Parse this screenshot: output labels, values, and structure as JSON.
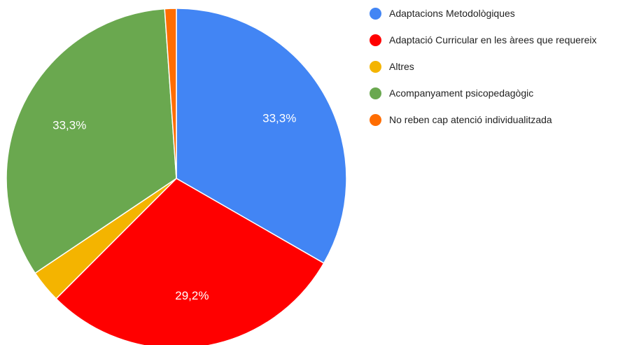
{
  "chart_data": {
    "type": "pie",
    "categories": [
      "Adaptacions Metodològiques",
      "Adaptació Curricular en les àrees que requereix",
      "Altres",
      "Acompanyament psicopedagògic",
      "No reben cap atenció individualitzada"
    ],
    "values": [
      33.3,
      29.2,
      3.1,
      33.3,
      1.1
    ],
    "value_labels": [
      "33,3%",
      "29,2%",
      null,
      "33,3%",
      null
    ],
    "colors": [
      "#4285f4",
      "#ff0000",
      "#f4b400",
      "#6aa84f",
      "#ff6d01"
    ],
    "legend": "right"
  }
}
